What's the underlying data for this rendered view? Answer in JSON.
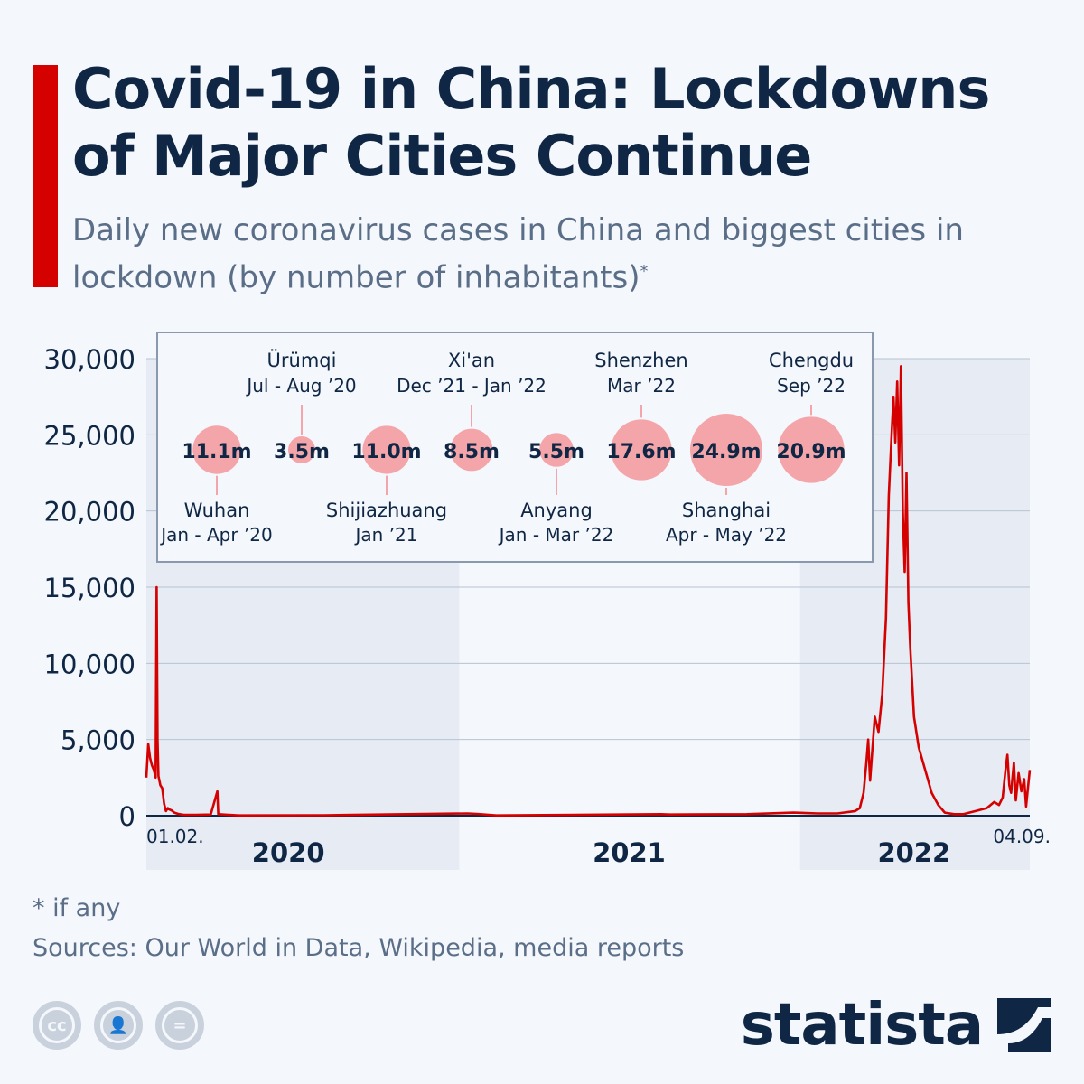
{
  "header": {
    "title": "Covid-19 in China: Lockdowns of Major Cities Continue",
    "subtitle": "Daily new coronavirus cases in China and biggest cities in lockdown (by number of inhabitants)",
    "subtitle_mark": "*"
  },
  "chart_data": {
    "type": "line",
    "series": [
      {
        "color": "#d50000",
        "points": [
          [
            "2020-02-01",
            2500
          ],
          [
            "2020-02-03",
            4700
          ],
          [
            "2020-02-05",
            3800
          ],
          [
            "2020-02-07",
            3300
          ],
          [
            "2020-02-09",
            3000
          ],
          [
            "2020-02-11",
            2500
          ],
          [
            "2020-02-12",
            15000
          ],
          [
            "2020-02-13",
            5000
          ],
          [
            "2020-02-14",
            2600
          ],
          [
            "2020-02-16",
            2000
          ],
          [
            "2020-02-18",
            1800
          ],
          [
            "2020-02-20",
            800
          ],
          [
            "2020-02-22",
            300
          ],
          [
            "2020-02-24",
            500
          ],
          [
            "2020-02-26",
            400
          ],
          [
            "2020-02-28",
            350
          ],
          [
            "2020-03-02",
            200
          ],
          [
            "2020-03-06",
            120
          ],
          [
            "2020-03-12",
            60
          ],
          [
            "2020-03-25",
            60
          ],
          [
            "2020-04-10",
            80
          ],
          [
            "2020-04-17",
            1600
          ],
          [
            "2020-04-18",
            100
          ],
          [
            "2020-05-10",
            20
          ],
          [
            "2020-08-10",
            30
          ],
          [
            "2021-01-10",
            150
          ],
          [
            "2021-01-20",
            120
          ],
          [
            "2021-02-10",
            20
          ],
          [
            "2021-08-05",
            100
          ],
          [
            "2021-08-15",
            80
          ],
          [
            "2021-11-05",
            100
          ],
          [
            "2021-12-25",
            200
          ],
          [
            "2022-01-20",
            150
          ],
          [
            "2022-02-10",
            150
          ],
          [
            "2022-03-01",
            300
          ],
          [
            "2022-03-06",
            500
          ],
          [
            "2022-03-10",
            1500
          ],
          [
            "2022-03-13",
            3500
          ],
          [
            "2022-03-15",
            5000
          ],
          [
            "2022-03-17",
            2300
          ],
          [
            "2022-03-19",
            4000
          ],
          [
            "2022-03-22",
            6500
          ],
          [
            "2022-03-26",
            5500
          ],
          [
            "2022-03-30",
            8000
          ],
          [
            "2022-04-03",
            13000
          ],
          [
            "2022-04-06",
            21000
          ],
          [
            "2022-04-09",
            25000
          ],
          [
            "2022-04-11",
            27500
          ],
          [
            "2022-04-13",
            24500
          ],
          [
            "2022-04-15",
            28500
          ],
          [
            "2022-04-17",
            23000
          ],
          [
            "2022-04-19",
            29500
          ],
          [
            "2022-04-21",
            20000
          ],
          [
            "2022-04-23",
            16000
          ],
          [
            "2022-04-25",
            22500
          ],
          [
            "2022-04-27",
            14000
          ],
          [
            "2022-04-29",
            11000
          ],
          [
            "2022-05-03",
            6500
          ],
          [
            "2022-05-08",
            4500
          ],
          [
            "2022-05-15",
            3000
          ],
          [
            "2022-05-22",
            1500
          ],
          [
            "2022-05-29",
            700
          ],
          [
            "2022-06-05",
            200
          ],
          [
            "2022-06-15",
            100
          ],
          [
            "2022-06-25",
            100
          ],
          [
            "2022-07-08",
            300
          ],
          [
            "2022-07-20",
            500
          ],
          [
            "2022-07-28",
            900
          ],
          [
            "2022-08-02",
            700
          ],
          [
            "2022-08-06",
            1200
          ],
          [
            "2022-08-09",
            3000
          ],
          [
            "2022-08-11",
            4000
          ],
          [
            "2022-08-13",
            2000
          ],
          [
            "2022-08-15",
            1500
          ],
          [
            "2022-08-18",
            3500
          ],
          [
            "2022-08-20",
            1000
          ],
          [
            "2022-08-23",
            2800
          ],
          [
            "2022-08-26",
            1600
          ],
          [
            "2022-08-29",
            2400
          ],
          [
            "2022-08-31",
            600
          ],
          [
            "2022-09-02",
            1800
          ],
          [
            "2022-09-04",
            3000
          ]
        ]
      }
    ],
    "ylim": [
      0,
      30000
    ],
    "yticks": [
      "0",
      "5,000",
      "10,000",
      "15,000",
      "20,000",
      "25,000",
      "30,000"
    ],
    "year_labels": [
      {
        "label": "2020",
        "mid": "2020-07-02"
      },
      {
        "label": "2021",
        "mid": "2021-07-02"
      },
      {
        "label": "2022",
        "mid": "2022-05-03"
      }
    ],
    "shaded_years": [
      "2020",
      "2022"
    ],
    "start_label": "01.02.",
    "end_label": "04.09.",
    "grid": true,
    "lockdowns": [
      {
        "value": "11.1m",
        "population": 11.1,
        "city": "Wuhan",
        "period": "Jan - Apr ’20",
        "label_pos": "below"
      },
      {
        "value": "3.5m",
        "population": 3.5,
        "city": "Ürümqi",
        "period": "Jul - Aug ’20",
        "label_pos": "above"
      },
      {
        "value": "11.0m",
        "population": 11.0,
        "city": "Shijiazhuang",
        "period": "Jan ’21",
        "label_pos": "below"
      },
      {
        "value": "8.5m",
        "population": 8.5,
        "city": "Xi'an",
        "period": "Dec ’21 - Jan ’22",
        "label_pos": "above"
      },
      {
        "value": "5.5m",
        "population": 5.5,
        "city": "Anyang",
        "period": "Jan - Mar ’22",
        "label_pos": "below"
      },
      {
        "value": "17.6m",
        "population": 17.6,
        "city": "Shenzhen",
        "period": "Mar ’22",
        "label_pos": "above"
      },
      {
        "value": "24.9m",
        "population": 24.9,
        "city": "Shanghai",
        "period": "Apr - May ’22",
        "label_pos": "below"
      },
      {
        "value": "20.9m",
        "population": 20.9,
        "city": "Chengdu",
        "period": "Sep ’22",
        "label_pos": "above"
      }
    ]
  },
  "footer": {
    "footnote": "* if any",
    "sources": "Sources: Our World in Data, Wikipedia, media reports",
    "brand": "statista",
    "cc_icons": [
      "cc",
      "by",
      "nd"
    ]
  },
  "colors": {
    "accent": "#d50000",
    "title": "#0f2744",
    "subtle_text": "#5a6e88",
    "bubble": "#f4a5a9",
    "shade": "#e6ebf4"
  }
}
